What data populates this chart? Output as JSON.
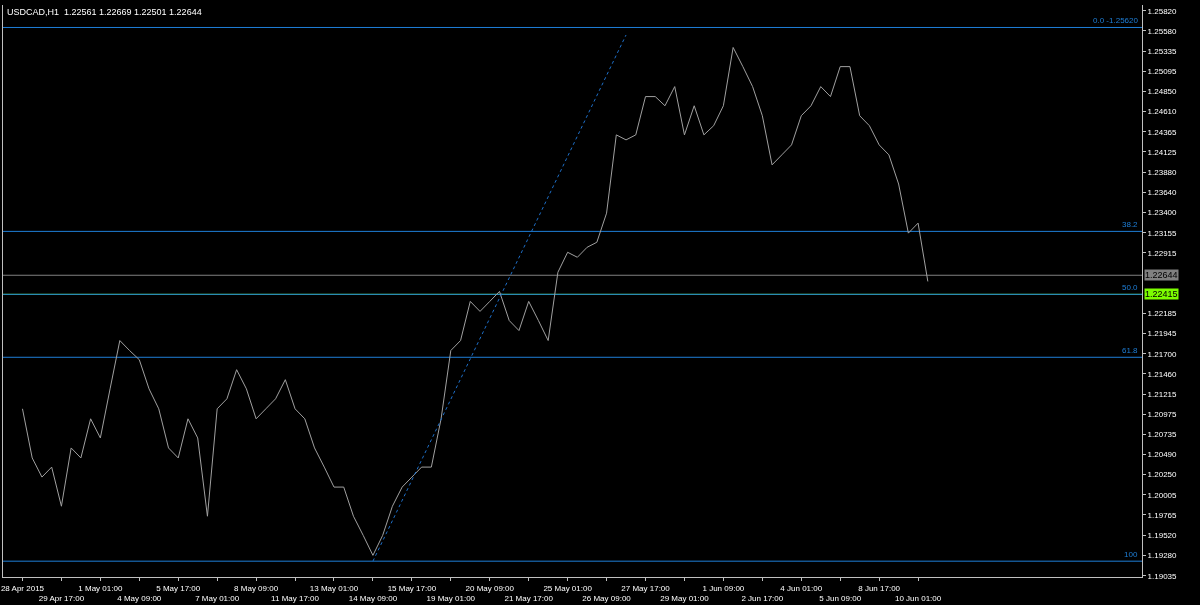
{
  "chart_data": {
    "type": "line",
    "title": "USDCAD,H1  1.22561 1.22669 1.22501 1.22644",
    "categories": [
      "28 Apr 2015",
      null,
      null,
      null,
      "29 Apr 17:00",
      null,
      null,
      null,
      "1 May 01:00",
      null,
      null,
      null,
      "4 May 09:00",
      null,
      null,
      null,
      "5 May 17:00",
      null,
      null,
      null,
      "7 May 01:00",
      null,
      null,
      null,
      "8 May 09:00",
      null,
      null,
      null,
      "11 May 17:00",
      null,
      null,
      null,
      "13 May 01:00",
      null,
      null,
      null,
      "14 May 09:00",
      null,
      null,
      null,
      "15 May 17:00",
      null,
      null,
      null,
      "19 May 01:00",
      null,
      null,
      null,
      "20 May 09:00",
      null,
      null,
      null,
      "21 May 17:00",
      null,
      null,
      null,
      "25 May 01:00",
      null,
      null,
      null,
      "26 May 09:00",
      null,
      null,
      null,
      "27 May 17:00",
      null,
      null,
      null,
      "29 May 01:00",
      null,
      null,
      null,
      "1 Jun 09:00",
      null,
      null,
      null,
      "2 Jun 17:00",
      null,
      null,
      null,
      "4 Jun 01:00",
      null,
      null,
      null,
      "5 Jun 09:00",
      null,
      null,
      null,
      "8 Jun 17:00",
      null,
      null,
      null,
      "10 Jun 01:00",
      null,
      null,
      null,
      null,
      null,
      null,
      null,
      null,
      null,
      null,
      null,
      null,
      null,
      null,
      null,
      null,
      null,
      null,
      null,
      null,
      null,
      null,
      null
    ],
    "series": [
      {
        "color": "#a0a0a0",
        "values": [
          1.2104,
          1.2045,
          1.2022,
          1.2034,
          1.1987,
          1.2057,
          1.2045,
          1.2092,
          1.2069,
          1.2128,
          1.2186,
          1.2174,
          1.2163,
          1.2128,
          1.2104,
          1.2057,
          1.2045,
          1.2092,
          1.2069,
          1.1975,
          1.2104,
          1.2116,
          1.2151,
          1.2128,
          1.2092,
          1.2104,
          1.2116,
          1.2139,
          1.2104,
          1.2092,
          1.2057,
          1.2034,
          1.201,
          1.201,
          1.1975,
          1.1952,
          1.1928,
          1.1952,
          1.1987,
          1.201,
          1.2022,
          1.2034,
          1.2034,
          1.2092,
          1.2174,
          1.2186,
          1.2233,
          1.2221,
          1.2233,
          1.2245,
          1.221,
          1.2198,
          1.2233,
          1.221,
          1.2186,
          1.2268,
          1.2292,
          1.2286,
          1.2298,
          1.2304,
          1.2339,
          1.2433,
          1.2427,
          1.2433,
          1.2479,
          1.2479,
          1.2468,
          1.2491,
          1.2433,
          1.2468,
          1.2433,
          1.2444,
          1.2468,
          1.2538,
          1.2515,
          1.2491,
          1.2456,
          1.2397,
          1.2409,
          1.2421,
          1.2456,
          1.2468,
          1.2491,
          1.2479,
          1.2515,
          1.2515,
          1.2456,
          1.2444,
          1.2421,
          1.2409,
          1.2374,
          1.2315,
          1.2327,
          1.2257,
          null,
          null,
          null,
          null,
          null,
          null,
          null,
          null,
          null,
          null,
          null,
          null,
          null,
          null,
          null,
          null,
          null,
          null,
          null,
          null,
          null,
          null
        ]
      },
      {
        "color": "#1e6fc8",
        "line_style": "dotted",
        "values": [
          null,
          null,
          null,
          null,
          null,
          null,
          null,
          null,
          null,
          null,
          null,
          null,
          null,
          null,
          null,
          null,
          null,
          null,
          null,
          null,
          null,
          null,
          null,
          null,
          null,
          null,
          null,
          null,
          null,
          null,
          null,
          null,
          null,
          null,
          null,
          null,
          1.1921,
          null,
          null,
          null,
          null,
          null,
          null,
          null,
          null,
          null,
          null,
          null,
          null,
          null,
          null,
          null,
          null,
          null,
          null,
          null,
          null,
          null,
          null,
          null,
          null,
          null,
          1.2553,
          null,
          null,
          null,
          null,
          null,
          null,
          null,
          null,
          null,
          null,
          null,
          null,
          null,
          null,
          null,
          null,
          null,
          null,
          null,
          null,
          null,
          null,
          null,
          null,
          null,
          null,
          null,
          null,
          null,
          null,
          null,
          null,
          null,
          null,
          null,
          null,
          null,
          null,
          null,
          null,
          null,
          null,
          null,
          null,
          null,
          null,
          null,
          null,
          null,
          null,
          null,
          null,
          null
        ]
      }
    ],
    "ylim": [
      1.1902,
      1.2589
    ],
    "yticks": [
      {
        "value": 1.2582,
        "label": "1.25820"
      },
      {
        "value": 1.2558,
        "label": "1.25580"
      },
      {
        "value": 1.25335,
        "label": "1.25335"
      },
      {
        "value": 1.25095,
        "label": "1.25095"
      },
      {
        "value": 1.2485,
        "label": "1.24850"
      },
      {
        "value": 1.2461,
        "label": "1.24610"
      },
      {
        "value": 1.24365,
        "label": "1.24365"
      },
      {
        "value": 1.24125,
        "label": "1.24125"
      },
      {
        "value": 1.2388,
        "label": "1.23880"
      },
      {
        "value": 1.2364,
        "label": "1.23640"
      },
      {
        "value": 1.234,
        "label": "1.23400"
      },
      {
        "value": 1.23155,
        "label": "1.23155"
      },
      {
        "value": 1.22915,
        "label": "1.22915"
      },
      {
        "value": 1.22185,
        "label": "1.22185"
      },
      {
        "value": 1.21945,
        "label": "1.21945"
      },
      {
        "value": 1.217,
        "label": "1.21700"
      },
      {
        "value": 1.2146,
        "label": "1.21460"
      },
      {
        "value": 1.21215,
        "label": "1.21215"
      },
      {
        "value": 1.20975,
        "label": "1.20975"
      },
      {
        "value": 1.20735,
        "label": "1.20735"
      },
      {
        "value": 1.2049,
        "label": "1.20490"
      },
      {
        "value": 1.2025,
        "label": "1.20250"
      },
      {
        "value": 1.20005,
        "label": "1.20005"
      },
      {
        "value": 1.19765,
        "label": "1.19765"
      },
      {
        "value": 1.1952,
        "label": "1.19520"
      },
      {
        "value": 1.1928,
        "label": "1.19280"
      },
      {
        "value": 1.19035,
        "label": "1.19035"
      }
    ],
    "ref_lines": [
      {
        "axis": "y",
        "value": 1.22644,
        "label": "1.22644",
        "color": "#808080"
      },
      {
        "axis": "y",
        "value": 1.22415,
        "label": "1.22415",
        "color": "#7cfc00"
      },
      {
        "axis": "y",
        "value": 1.2562,
        "color": "#1e7fd8"
      },
      {
        "axis": "y",
        "value": 1.23171,
        "color": "#1e7fd8"
      },
      {
        "axis": "y",
        "value": 1.22415,
        "color": "#1e7fd8"
      },
      {
        "axis": "y",
        "value": 1.21659,
        "color": "#1e7fd8"
      },
      {
        "axis": "y",
        "value": 1.1921,
        "color": "#1e7fd8"
      }
    ],
    "annotations": [
      {
        "text": "0.0 -1.25620",
        "y": 1.2562
      },
      {
        "text": "38.2",
        "y": 1.23171
      },
      {
        "text": "50.0",
        "y": 1.22415
      },
      {
        "text": "61.8",
        "y": 1.21659
      },
      {
        "text": "100",
        "y": 1.1921
      }
    ],
    "grid": false
  }
}
